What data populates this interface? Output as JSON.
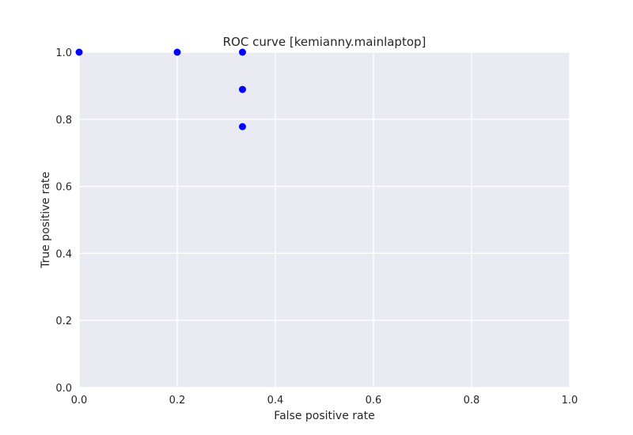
{
  "chart_data": {
    "type": "scatter",
    "title": "ROC curve [kemianny.mainlaptop]",
    "xlabel": "False positive rate",
    "ylabel": "True positive rate",
    "xlim": [
      0.0,
      1.0
    ],
    "ylim": [
      0.0,
      1.0
    ],
    "xticks": [
      0.0,
      0.2,
      0.4,
      0.6,
      0.8,
      1.0
    ],
    "yticks": [
      0.0,
      0.2,
      0.4,
      0.6,
      0.8,
      1.0
    ],
    "xtick_labels": [
      "0.0",
      "0.2",
      "0.4",
      "0.6",
      "0.8",
      "1.0"
    ],
    "ytick_labels": [
      "0.0",
      "0.2",
      "0.4",
      "0.6",
      "0.8",
      "1.0"
    ],
    "grid": true,
    "colors": {
      "plot_background": "#EAEAF2",
      "grid": "#FFFFFF",
      "marker": "#0000FF"
    },
    "series": [
      {
        "x": [
          0.0,
          0.2,
          0.333,
          0.333,
          0.333
        ],
        "y": [
          1.0,
          1.0,
          1.0,
          0.889,
          0.778
        ]
      }
    ]
  }
}
